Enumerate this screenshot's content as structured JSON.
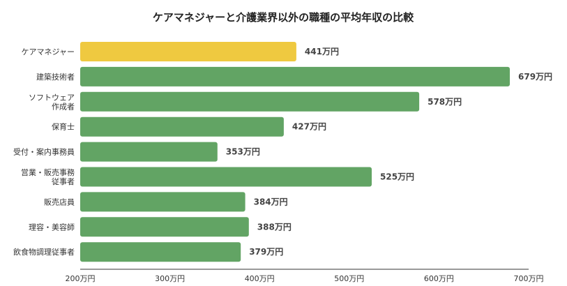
{
  "chart_data": {
    "type": "bar",
    "orientation": "horizontal",
    "title": "ケアマネジャーと介護業界以外の職種の平均年収の比較",
    "categories": [
      [
        "ケアマネジャー"
      ],
      [
        "建築技術者"
      ],
      [
        "ソフトウェア",
        "作成者"
      ],
      [
        "保育士"
      ],
      [
        "受付・案内事務員"
      ],
      [
        "営業・販売事務",
        "従事者"
      ],
      [
        "販売店員"
      ],
      [
        "理容・美容師"
      ],
      [
        "飲食物調理従事者"
      ]
    ],
    "values": [
      441,
      679,
      578,
      427,
      353,
      525,
      384,
      388,
      379
    ],
    "value_labels": [
      "441万円",
      "679万円",
      "578万円",
      "427万円",
      "353万円",
      "525万円",
      "384万円",
      "388万円",
      "379万円"
    ],
    "highlight_index": 0,
    "xlim": [
      200,
      700
    ],
    "xticks": [
      200,
      300,
      400,
      500,
      600,
      700
    ],
    "xtick_labels": [
      "200万円",
      "300万円",
      "400万円",
      "500万円",
      "600万円",
      "700万円"
    ],
    "xlabel": "",
    "ylabel": "",
    "grid": false,
    "colors": {
      "highlight": "#EFC940",
      "default": "#62A464",
      "axis": "#333333"
    }
  }
}
